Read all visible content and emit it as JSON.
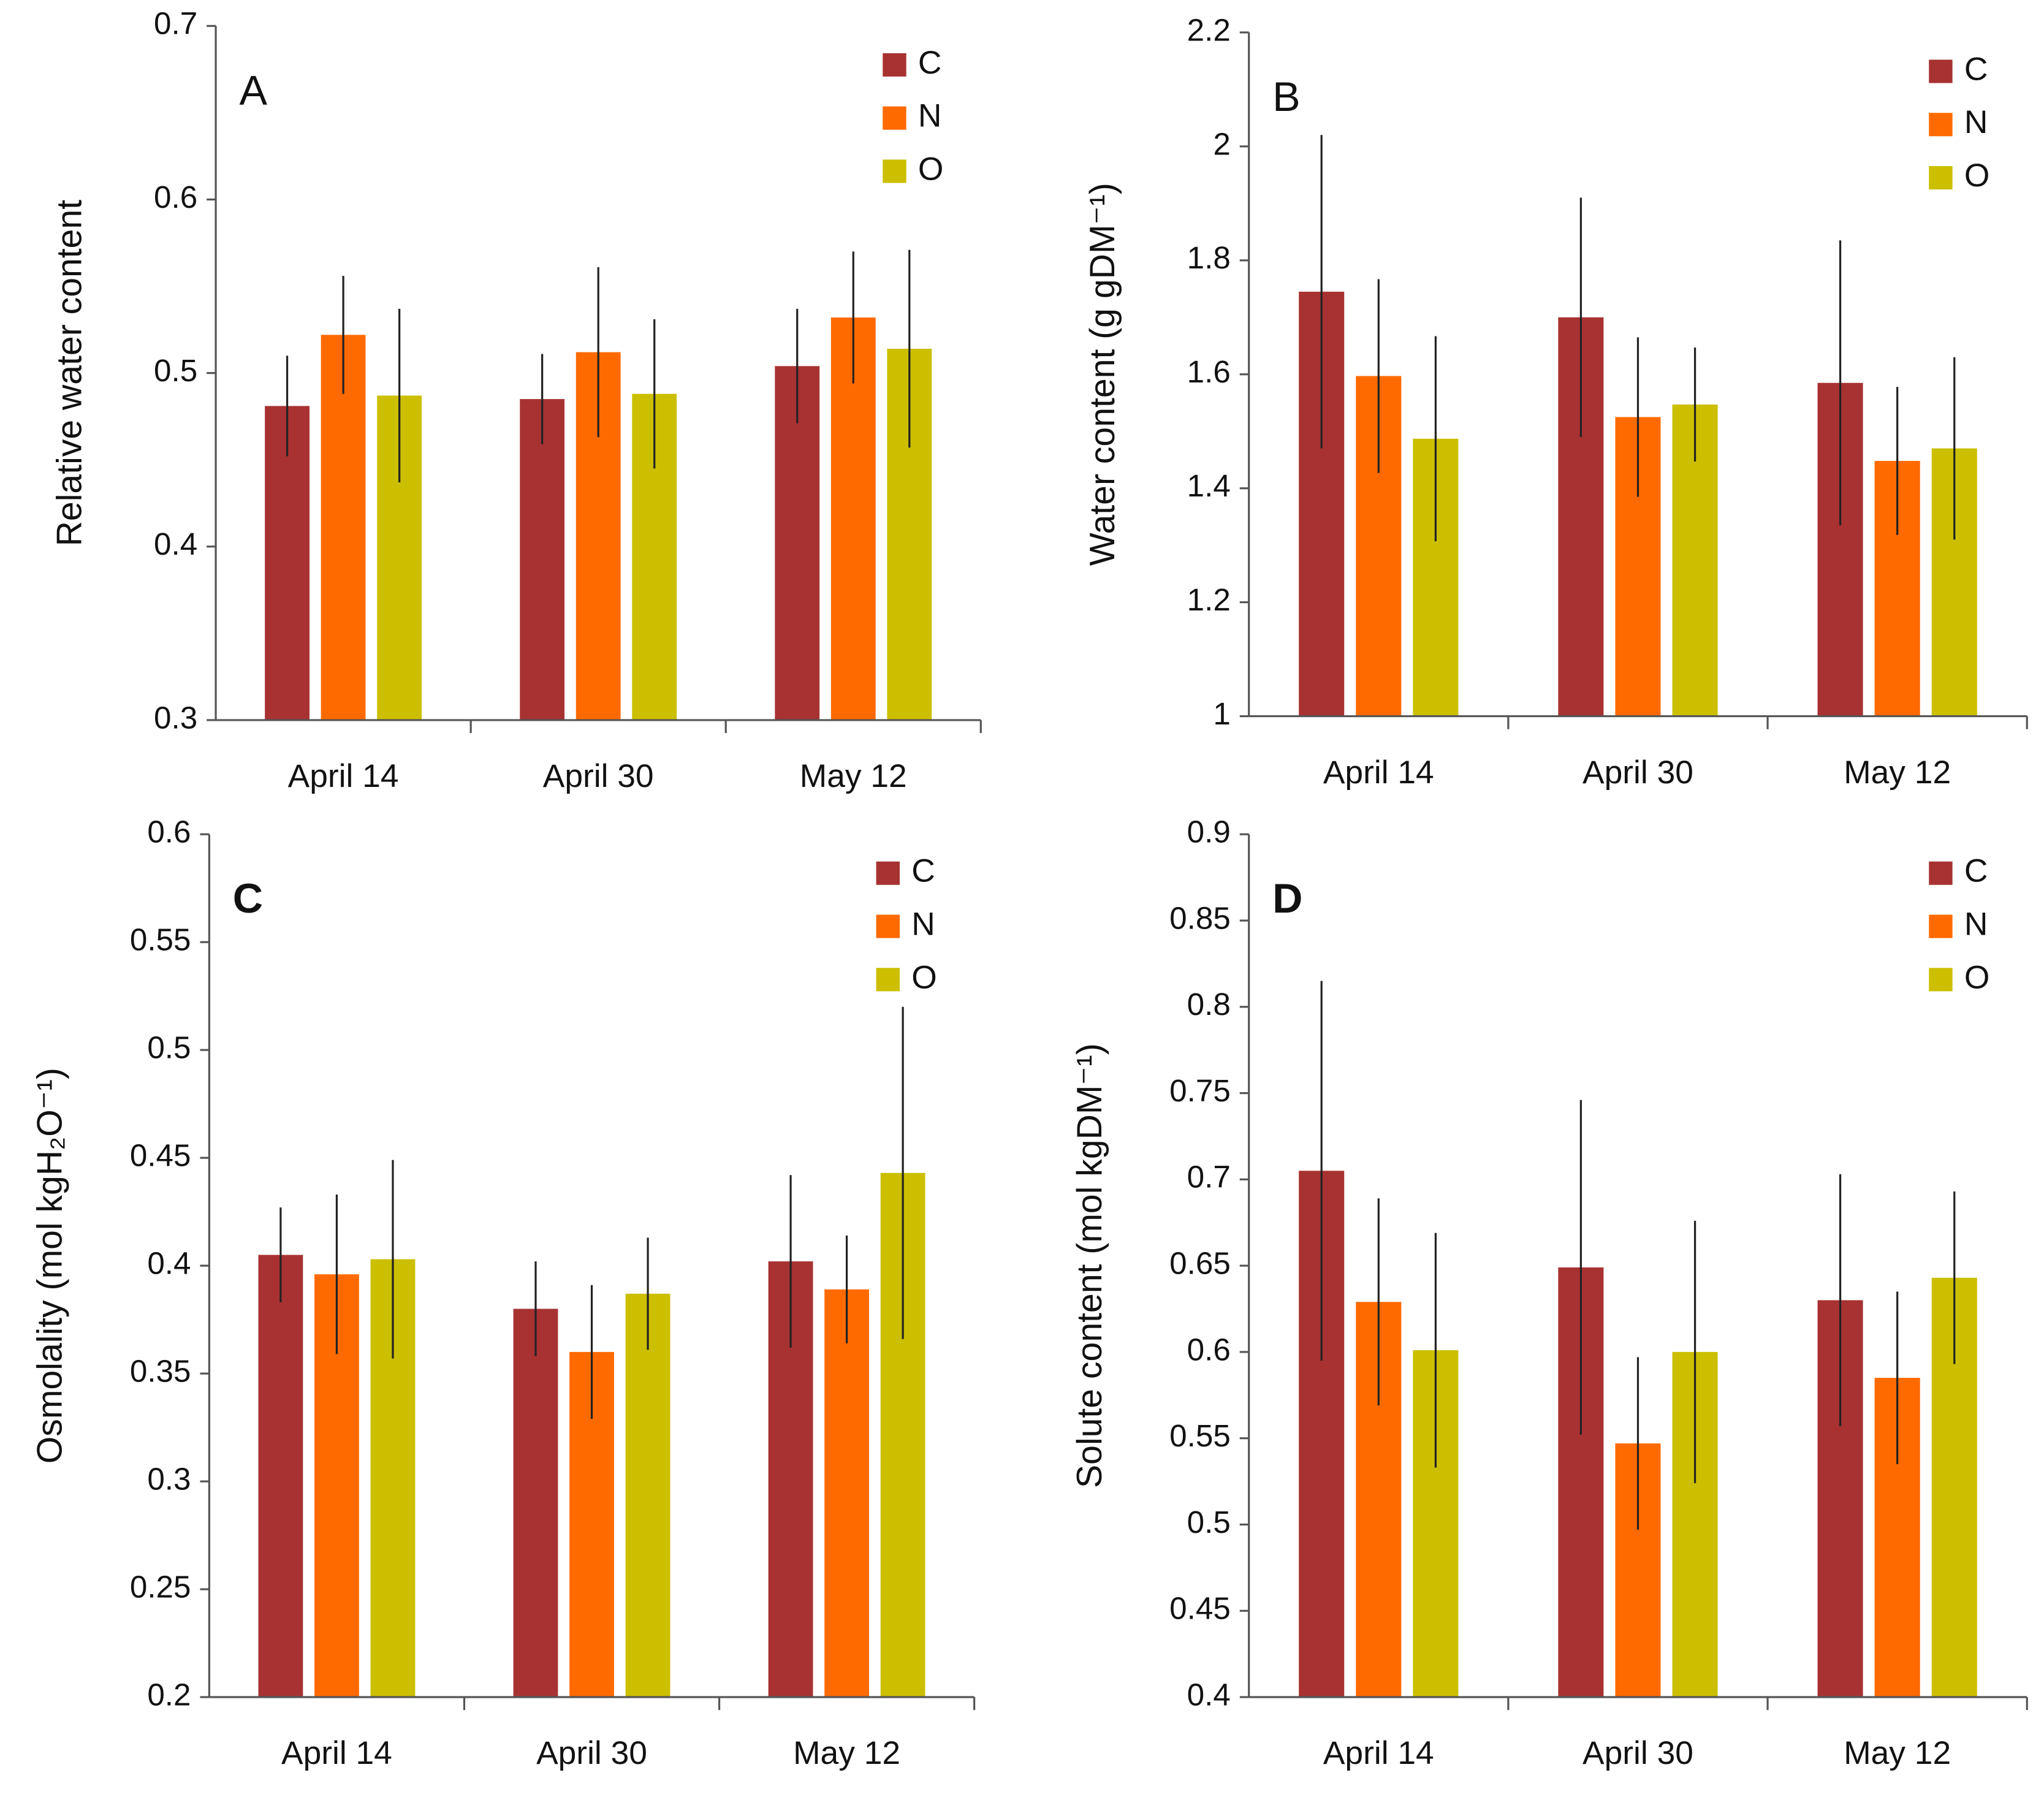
{
  "chart_data": [
    {
      "type": "bar",
      "annotation": "A",
      "ylabel": "Relative water content",
      "categories": [
        "April 14",
        "April 30",
        "May 12"
      ],
      "ylim": [
        0.3,
        0.7
      ],
      "yticks": [
        0.3,
        0.4,
        0.5,
        0.6,
        0.7
      ],
      "legend": "top-right",
      "series": [
        {
          "name": "C",
          "color": "#a83232",
          "values": [
            0.481,
            0.485,
            0.504
          ],
          "errors": [
            0.029,
            0.026,
            0.033
          ]
        },
        {
          "name": "N",
          "color": "#ff6a00",
          "values": [
            0.522,
            0.512,
            0.532
          ],
          "errors": [
            0.034,
            0.049,
            0.038
          ]
        },
        {
          "name": "O",
          "color": "#cbbf00",
          "values": [
            0.487,
            0.488,
            0.514
          ],
          "errors": [
            0.05,
            0.043,
            0.057
          ]
        }
      ]
    },
    {
      "type": "bar",
      "annotation": "B",
      "ylabel": "Water content (g gDM⁻¹)",
      "categories": [
        "April 14",
        "April 30",
        "May 12"
      ],
      "ylim": [
        1,
        2.2
      ],
      "yticks": [
        1,
        1.2,
        1.4,
        1.6,
        1.8,
        2,
        2.2
      ],
      "legend": "top-right",
      "series": [
        {
          "name": "C",
          "color": "#a83232",
          "values": [
            1.745,
            1.7,
            1.585
          ],
          "errors": [
            0.275,
            0.21,
            0.25
          ]
        },
        {
          "name": "N",
          "color": "#ff6a00",
          "values": [
            1.597,
            1.525,
            1.448
          ],
          "errors": [
            0.17,
            0.14,
            0.13
          ]
        },
        {
          "name": "O",
          "color": "#cbbf00",
          "values": [
            1.487,
            1.547,
            1.47
          ],
          "errors": [
            0.18,
            0.1,
            0.16
          ]
        }
      ]
    },
    {
      "type": "bar",
      "annotation": "C",
      "ylabel": "Osmolality (mol kgH₂O⁻¹)",
      "categories": [
        "April 14",
        "April 30",
        "May 12"
      ],
      "ylim": [
        0.2,
        0.6
      ],
      "yticks": [
        0.2,
        0.25,
        0.3,
        0.35,
        0.4,
        0.45,
        0.5,
        0.55,
        0.6
      ],
      "legend": "top-right",
      "series": [
        {
          "name": "C",
          "color": "#a83232",
          "values": [
            0.405,
            0.38,
            0.402
          ],
          "errors": [
            0.022,
            0.022,
            0.04
          ]
        },
        {
          "name": "N",
          "color": "#ff6a00",
          "values": [
            0.396,
            0.36,
            0.389
          ],
          "errors": [
            0.037,
            0.031,
            0.025
          ]
        },
        {
          "name": "O",
          "color": "#cbbf00",
          "values": [
            0.403,
            0.387,
            0.443
          ],
          "errors": [
            0.046,
            0.026,
            0.077
          ]
        }
      ]
    },
    {
      "type": "bar",
      "annotation": "D",
      "ylabel": "Solute content (mol kgDM⁻¹)",
      "categories": [
        "April 14",
        "April 30",
        "May 12"
      ],
      "ylim": [
        0.4,
        0.9
      ],
      "yticks": [
        0.4,
        0.45,
        0.5,
        0.55,
        0.6,
        0.65,
        0.7,
        0.75,
        0.8,
        0.85,
        0.9
      ],
      "legend": "top-right",
      "series": [
        {
          "name": "C",
          "color": "#a83232",
          "values": [
            0.705,
            0.649,
            0.63
          ],
          "errors": [
            0.11,
            0.097,
            0.073
          ]
        },
        {
          "name": "N",
          "color": "#ff6a00",
          "values": [
            0.629,
            0.547,
            0.585
          ],
          "errors": [
            0.06,
            0.05,
            0.05
          ]
        },
        {
          "name": "O",
          "color": "#cbbf00",
          "values": [
            0.601,
            0.6,
            0.643
          ],
          "errors": [
            0.068,
            0.076,
            0.05
          ]
        }
      ]
    }
  ]
}
